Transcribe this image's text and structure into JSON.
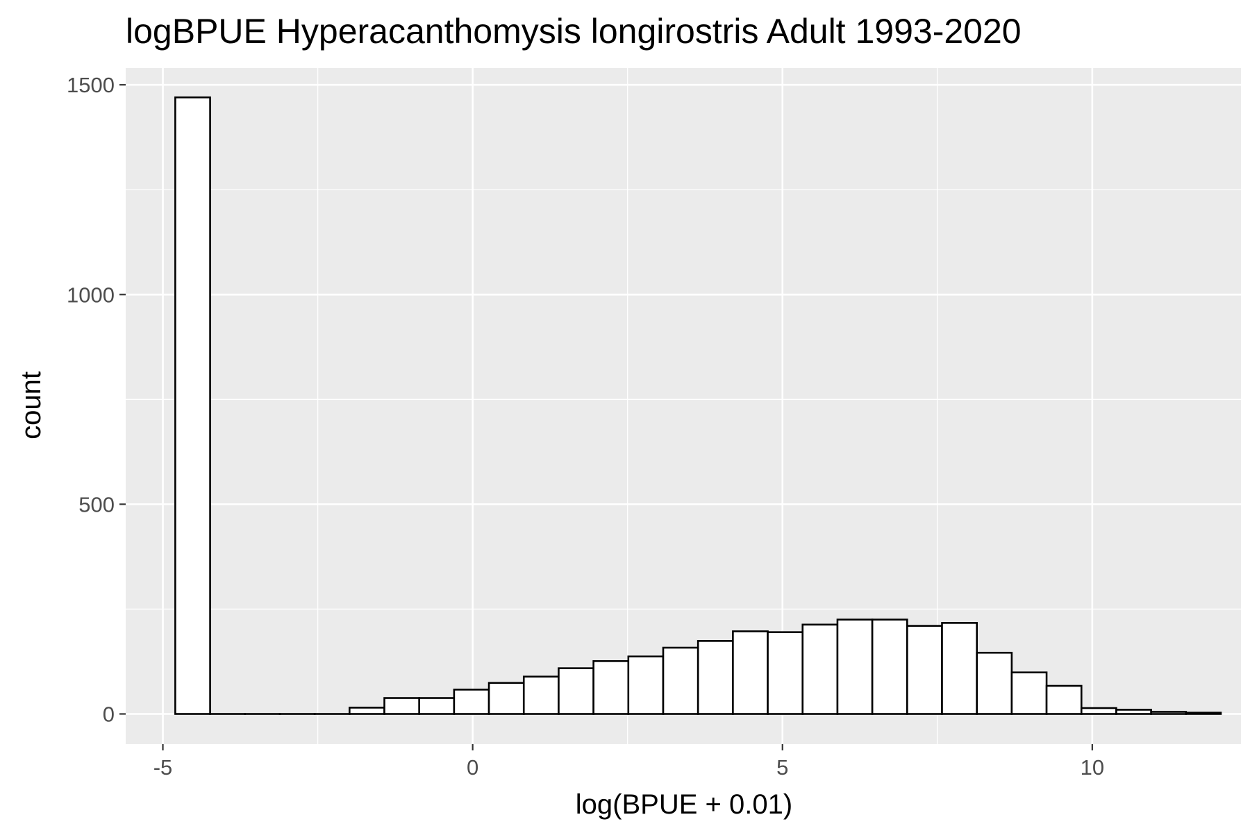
{
  "chart_data": {
    "type": "bar",
    "title": "logBPUE Hyperacanthomysis longirostris Adult  1993-2020",
    "xlabel": "log(BPUE + 0.01)",
    "ylabel": "count",
    "xlim": [
      -5.6,
      12.4
    ],
    "ylim": [
      -72,
      1540
    ],
    "x_ticks": [
      -5,
      0,
      5,
      10
    ],
    "x_tick_labels": [
      "-5",
      "0",
      "5",
      "10"
    ],
    "y_ticks": [
      0,
      500,
      1000,
      1500
    ],
    "y_tick_labels": [
      "0",
      "500",
      "1000",
      "1500"
    ],
    "grid": true,
    "legend": "none",
    "bin_width": 0.5625,
    "bin_start": -4.8,
    "values": [
      1470,
      0,
      0,
      0,
      0,
      15,
      38,
      38,
      58,
      74,
      89,
      109,
      126,
      137,
      158,
      174,
      197,
      195,
      213,
      225,
      225,
      210,
      217,
      146,
      99,
      67,
      14,
      10,
      5,
      3
    ],
    "colors": {
      "panel_background": "#ebebeb",
      "grid_line": "#ffffff",
      "bar_fill": "#ffffff",
      "bar_outline": "#000000",
      "tick_label": "#4d4d4d"
    }
  }
}
